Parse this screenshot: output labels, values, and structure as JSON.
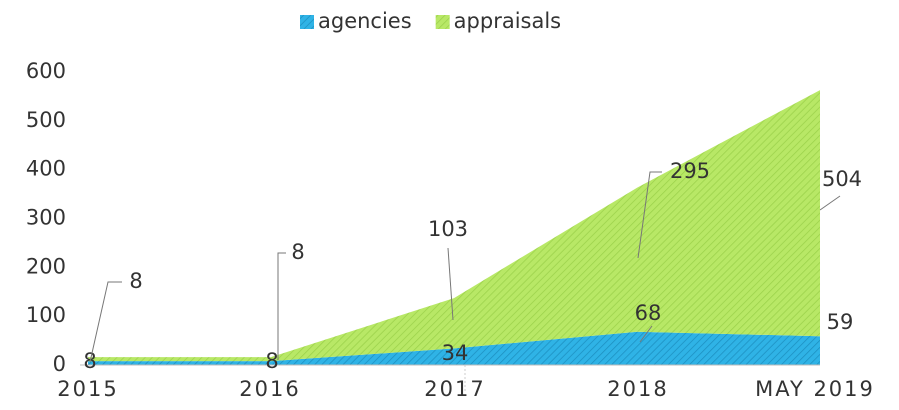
{
  "chart_data": {
    "type": "stacked_area",
    "categories": [
      "2015",
      "2016",
      "2017",
      "2018",
      "MAY 2019"
    ],
    "series": [
      {
        "name": "agencies",
        "color": "#2fb3e6",
        "values": [
          8,
          8,
          34,
          68,
          59
        ]
      },
      {
        "name": "appraisals",
        "color": "#b3e65a",
        "values": [
          8,
          8,
          103,
          295,
          504
        ]
      }
    ],
    "ylim": [
      0,
      600
    ],
    "yticks": [
      0,
      100,
      200,
      300,
      400,
      500,
      600
    ],
    "legend": "top"
  }
}
